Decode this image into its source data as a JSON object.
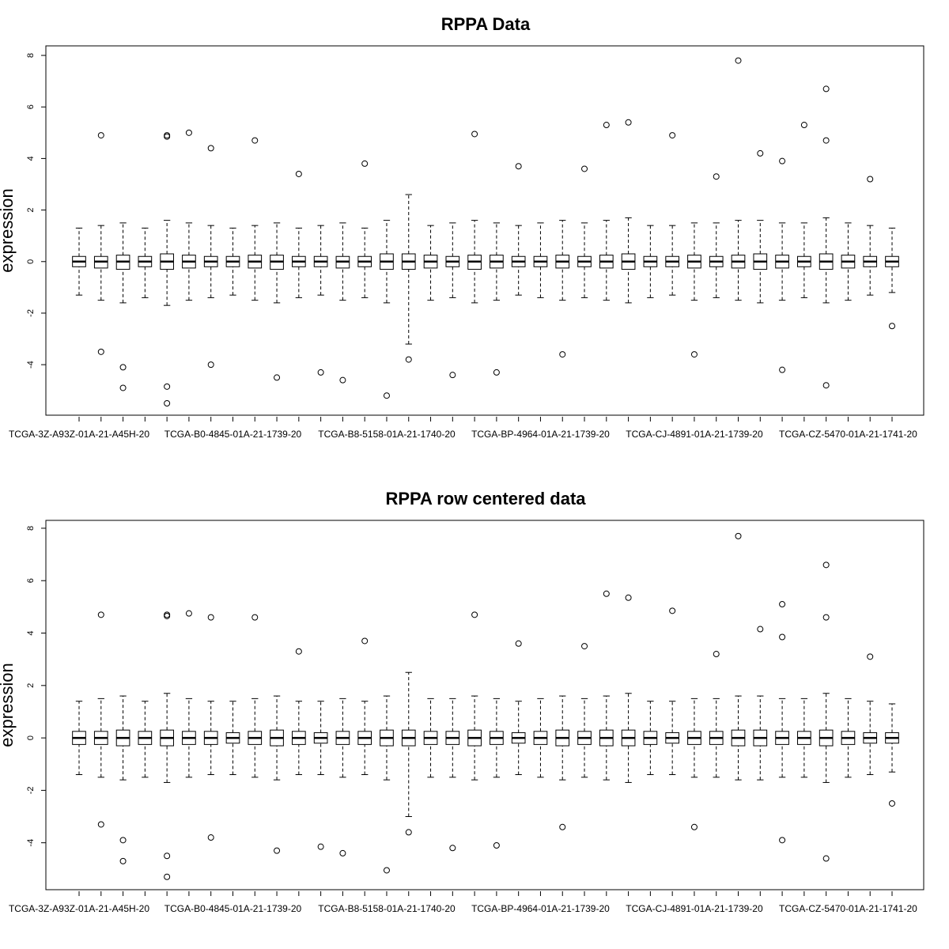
{
  "chart_data": [
    {
      "type": "box",
      "title": "RPPA Data",
      "ylabel": "expression",
      "categories": [
        "TCGA-3Z-A93Z-01A-21-A45H-20",
        null,
        null,
        null,
        null,
        null,
        null,
        "TCGA-B0-4845-01A-21-1739-20",
        null,
        null,
        null,
        null,
        null,
        null,
        "TCGA-B8-5158-01A-21-1740-20",
        null,
        null,
        null,
        null,
        null,
        null,
        "TCGA-BP-4964-01A-21-1739-20",
        null,
        null,
        null,
        null,
        null,
        null,
        "TCGA-CJ-4891-01A-21-1739-20",
        null,
        null,
        null,
        null,
        null,
        null,
        "TCGA-CZ-5470-01A-21-1741-20",
        null,
        null
      ],
      "boxes": [
        [
          -1.3,
          -0.2,
          0,
          0.2,
          1.3
        ],
        [
          -1.5,
          -0.25,
          0,
          0.2,
          1.4
        ],
        [
          -1.6,
          -0.3,
          0,
          0.25,
          1.5
        ],
        [
          -1.4,
          -0.2,
          0,
          0.2,
          1.3
        ],
        [
          -1.7,
          -0.3,
          0,
          0.3,
          1.6
        ],
        [
          -1.5,
          -0.25,
          0,
          0.25,
          1.5
        ],
        [
          -1.4,
          -0.2,
          0,
          0.2,
          1.4
        ],
        [
          -1.3,
          -0.2,
          0,
          0.2,
          1.3
        ],
        [
          -1.5,
          -0.25,
          0,
          0.25,
          1.4
        ],
        [
          -1.6,
          -0.3,
          0,
          0.25,
          1.5
        ],
        [
          -1.4,
          -0.2,
          0,
          0.2,
          1.3
        ],
        [
          -1.3,
          -0.2,
          0,
          0.2,
          1.4
        ],
        [
          -1.5,
          -0.25,
          0,
          0.2,
          1.5
        ],
        [
          -1.4,
          -0.2,
          0,
          0.2,
          1.3
        ],
        [
          -1.6,
          -0.3,
          0,
          0.3,
          1.6
        ],
        [
          -3.2,
          -0.3,
          0,
          0.3,
          2.6
        ],
        [
          -1.5,
          -0.25,
          0,
          0.25,
          1.4
        ],
        [
          -1.4,
          -0.2,
          0,
          0.2,
          1.5
        ],
        [
          -1.6,
          -0.3,
          0,
          0.25,
          1.6
        ],
        [
          -1.5,
          -0.25,
          0,
          0.25,
          1.5
        ],
        [
          -1.3,
          -0.2,
          0,
          0.2,
          1.4
        ],
        [
          -1.4,
          -0.2,
          0,
          0.2,
          1.5
        ],
        [
          -1.5,
          -0.25,
          0,
          0.25,
          1.6
        ],
        [
          -1.4,
          -0.2,
          0,
          0.2,
          1.5
        ],
        [
          -1.5,
          -0.25,
          0,
          0.25,
          1.6
        ],
        [
          -1.6,
          -0.3,
          0,
          0.3,
          1.7
        ],
        [
          -1.4,
          -0.2,
          0,
          0.2,
          1.4
        ],
        [
          -1.3,
          -0.2,
          0,
          0.2,
          1.4
        ],
        [
          -1.5,
          -0.25,
          0,
          0.25,
          1.5
        ],
        [
          -1.4,
          -0.2,
          0,
          0.2,
          1.5
        ],
        [
          -1.5,
          -0.25,
          0,
          0.25,
          1.6
        ],
        [
          -1.6,
          -0.3,
          0,
          0.3,
          1.6
        ],
        [
          -1.5,
          -0.25,
          0,
          0.25,
          1.5
        ],
        [
          -1.4,
          -0.2,
          0,
          0.2,
          1.5
        ],
        [
          -1.6,
          -0.3,
          0,
          0.3,
          1.7
        ],
        [
          -1.5,
          -0.25,
          0,
          0.25,
          1.5
        ],
        [
          -1.3,
          -0.2,
          0,
          0.2,
          1.4
        ],
        [
          -1.2,
          -0.2,
          0,
          0.2,
          1.3
        ]
      ],
      "outliers": [
        [
          30,
          7.8
        ],
        [
          34,
          6.7
        ],
        [
          33,
          5.3
        ],
        [
          24,
          5.3
        ],
        [
          25,
          5.4
        ],
        [
          27,
          4.9
        ],
        [
          18,
          4.95
        ],
        [
          1,
          4.9
        ],
        [
          4,
          4.9
        ],
        [
          4,
          4.85
        ],
        [
          5,
          5.0
        ],
        [
          6,
          4.4
        ],
        [
          8,
          4.7
        ],
        [
          31,
          4.2
        ],
        [
          34,
          4.7
        ],
        [
          32,
          3.9
        ],
        [
          4,
          -5.5
        ],
        [
          2,
          -4.9
        ],
        [
          14,
          -5.2
        ],
        [
          34,
          -4.8
        ],
        [
          12,
          -4.6
        ],
        [
          11,
          -4.3
        ],
        [
          17,
          -4.4
        ],
        [
          19,
          -4.3
        ],
        [
          32,
          -4.2
        ],
        [
          6,
          -4.0
        ],
        [
          9,
          -4.5
        ],
        [
          4,
          -4.85
        ],
        [
          2,
          -4.1
        ],
        [
          1,
          -3.5
        ],
        [
          15,
          -3.8
        ],
        [
          22,
          -3.6
        ],
        [
          28,
          -3.6
        ],
        [
          10,
          3.4
        ],
        [
          13,
          3.8
        ],
        [
          20,
          3.7
        ],
        [
          23,
          3.6
        ],
        [
          29,
          3.3
        ],
        [
          36,
          3.2
        ],
        [
          37,
          -2.5
        ]
      ],
      "ylim": [
        -5.96,
        8.37
      ],
      "yticks": [
        -4,
        -2,
        0,
        2,
        4,
        6,
        8
      ]
    },
    {
      "type": "box",
      "title": "RPPA row centered data",
      "ylabel": "expression",
      "categories": [
        "TCGA-3Z-A93Z-01A-21-A45H-20",
        null,
        null,
        null,
        null,
        null,
        null,
        "TCGA-B0-4845-01A-21-1739-20",
        null,
        null,
        null,
        null,
        null,
        null,
        "TCGA-B8-5158-01A-21-1740-20",
        null,
        null,
        null,
        null,
        null,
        null,
        "TCGA-BP-4964-01A-21-1739-20",
        null,
        null,
        null,
        null,
        null,
        null,
        "TCGA-CJ-4891-01A-21-1739-20",
        null,
        null,
        null,
        null,
        null,
        null,
        "TCGA-CZ-5470-01A-21-1741-20",
        null,
        null
      ],
      "boxes": [
        [
          -1.4,
          -0.25,
          0,
          0.25,
          1.4
        ],
        [
          -1.5,
          -0.25,
          0,
          0.25,
          1.5
        ],
        [
          -1.6,
          -0.3,
          0,
          0.3,
          1.6
        ],
        [
          -1.5,
          -0.25,
          0,
          0.25,
          1.4
        ],
        [
          -1.7,
          -0.3,
          0,
          0.3,
          1.7
        ],
        [
          -1.5,
          -0.25,
          0,
          0.25,
          1.5
        ],
        [
          -1.4,
          -0.25,
          0,
          0.25,
          1.4
        ],
        [
          -1.4,
          -0.2,
          0,
          0.2,
          1.4
        ],
        [
          -1.5,
          -0.25,
          0,
          0.25,
          1.5
        ],
        [
          -1.6,
          -0.3,
          0,
          0.3,
          1.6
        ],
        [
          -1.4,
          -0.25,
          0,
          0.25,
          1.4
        ],
        [
          -1.4,
          -0.2,
          0,
          0.2,
          1.4
        ],
        [
          -1.5,
          -0.25,
          0,
          0.25,
          1.5
        ],
        [
          -1.4,
          -0.25,
          0,
          0.25,
          1.4
        ],
        [
          -1.6,
          -0.3,
          0,
          0.3,
          1.6
        ],
        [
          -3.0,
          -0.3,
          0,
          0.3,
          2.5
        ],
        [
          -1.5,
          -0.25,
          0,
          0.25,
          1.5
        ],
        [
          -1.5,
          -0.25,
          0,
          0.25,
          1.5
        ],
        [
          -1.6,
          -0.3,
          0,
          0.3,
          1.6
        ],
        [
          -1.5,
          -0.25,
          0,
          0.25,
          1.5
        ],
        [
          -1.4,
          -0.2,
          0,
          0.2,
          1.4
        ],
        [
          -1.5,
          -0.25,
          0,
          0.25,
          1.5
        ],
        [
          -1.6,
          -0.3,
          0,
          0.3,
          1.6
        ],
        [
          -1.5,
          -0.25,
          0,
          0.25,
          1.5
        ],
        [
          -1.6,
          -0.3,
          0,
          0.3,
          1.6
        ],
        [
          -1.7,
          -0.3,
          0,
          0.3,
          1.7
        ],
        [
          -1.4,
          -0.25,
          0,
          0.25,
          1.4
        ],
        [
          -1.4,
          -0.2,
          0,
          0.2,
          1.4
        ],
        [
          -1.5,
          -0.25,
          0,
          0.25,
          1.5
        ],
        [
          -1.5,
          -0.25,
          0,
          0.25,
          1.5
        ],
        [
          -1.6,
          -0.3,
          0,
          0.3,
          1.6
        ],
        [
          -1.6,
          -0.3,
          0,
          0.3,
          1.6
        ],
        [
          -1.5,
          -0.25,
          0,
          0.25,
          1.5
        ],
        [
          -1.5,
          -0.25,
          0,
          0.25,
          1.5
        ],
        [
          -1.7,
          -0.3,
          0,
          0.3,
          1.7
        ],
        [
          -1.5,
          -0.25,
          0,
          0.25,
          1.5
        ],
        [
          -1.4,
          -0.2,
          0,
          0.2,
          1.4
        ],
        [
          -1.3,
          -0.2,
          0,
          0.2,
          1.3
        ]
      ],
      "outliers": [
        [
          30,
          7.7
        ],
        [
          34,
          6.6
        ],
        [
          32,
          5.1
        ],
        [
          24,
          5.5
        ],
        [
          25,
          5.35
        ],
        [
          27,
          4.85
        ],
        [
          18,
          4.7
        ],
        [
          1,
          4.7
        ],
        [
          4,
          4.7
        ],
        [
          4,
          4.65
        ],
        [
          5,
          4.75
        ],
        [
          6,
          4.6
        ],
        [
          8,
          4.6
        ],
        [
          31,
          4.15
        ],
        [
          34,
          4.6
        ],
        [
          32,
          3.85
        ],
        [
          4,
          -5.3
        ],
        [
          2,
          -4.7
        ],
        [
          14,
          -5.05
        ],
        [
          34,
          -4.6
        ],
        [
          12,
          -4.4
        ],
        [
          11,
          -4.15
        ],
        [
          17,
          -4.2
        ],
        [
          19,
          -4.1
        ],
        [
          32,
          -3.9
        ],
        [
          6,
          -3.8
        ],
        [
          9,
          -4.3
        ],
        [
          4,
          -4.5
        ],
        [
          2,
          -3.9
        ],
        [
          1,
          -3.3
        ],
        [
          15,
          -3.6
        ],
        [
          22,
          -3.4
        ],
        [
          28,
          -3.4
        ],
        [
          10,
          3.3
        ],
        [
          13,
          3.7
        ],
        [
          20,
          3.6
        ],
        [
          23,
          3.5
        ],
        [
          29,
          3.2
        ],
        [
          36,
          3.1
        ],
        [
          37,
          -2.5
        ]
      ],
      "ylim": [
        -5.79,
        8.3
      ],
      "yticks": [
        -4,
        -2,
        0,
        2,
        4,
        6,
        8
      ]
    }
  ]
}
